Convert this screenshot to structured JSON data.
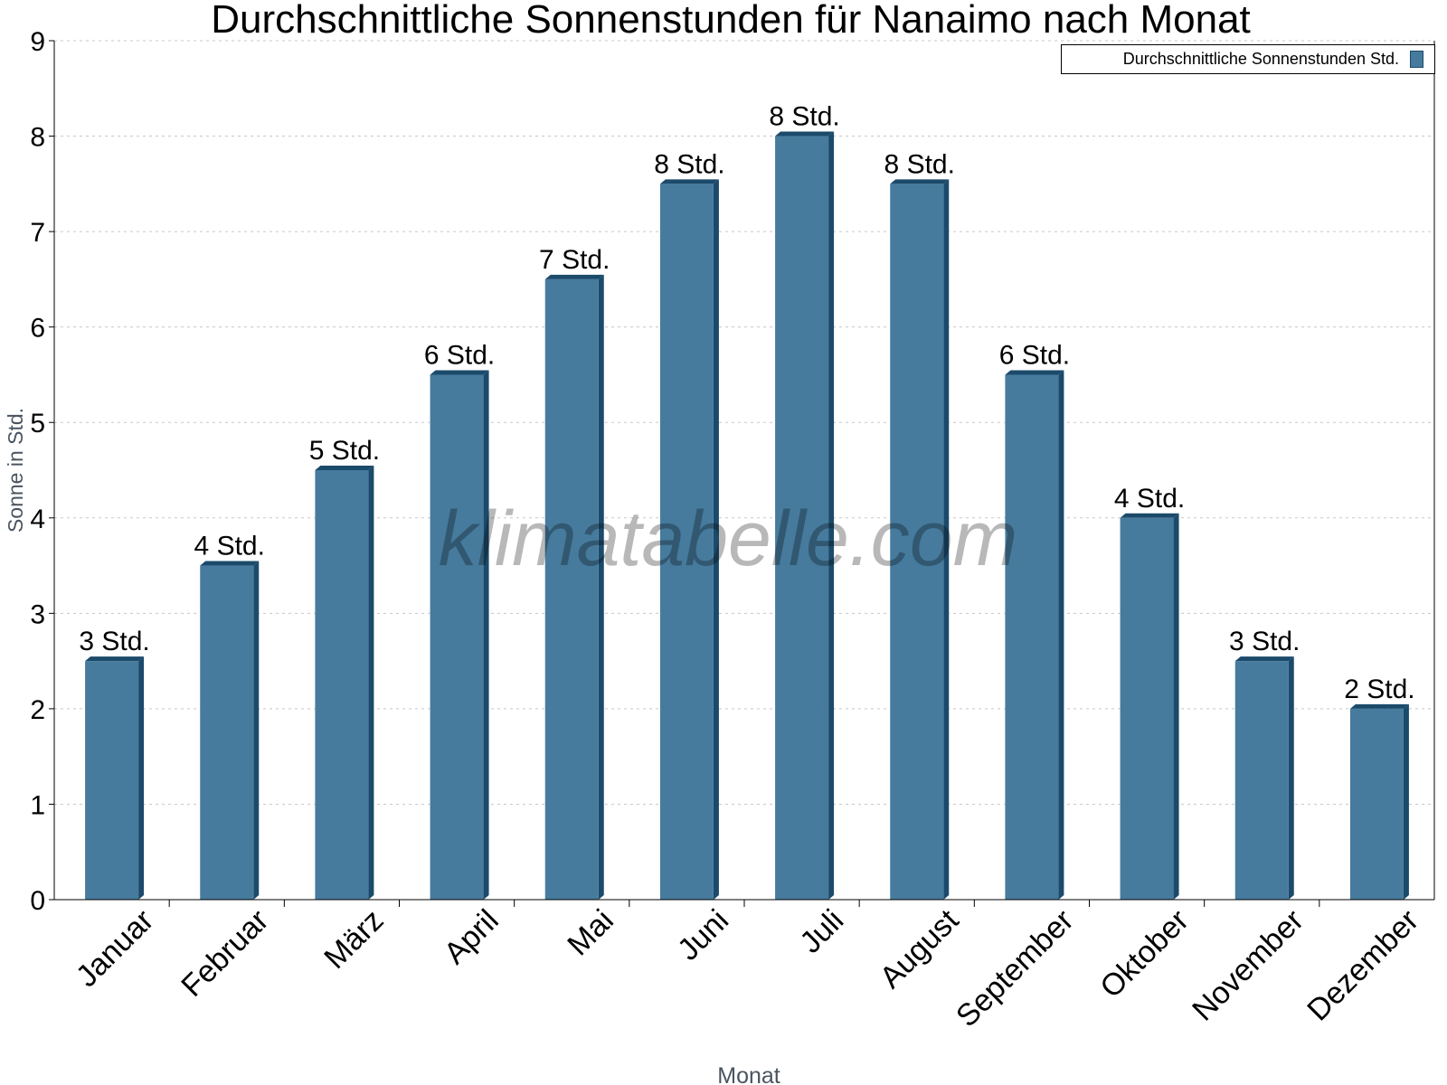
{
  "chart_data": {
    "type": "bar",
    "title": "Durchschnittliche Sonnenstunden für Nanaimo nach Monat",
    "xlabel": "Monat",
    "ylabel": "Sonne in Std.",
    "categories": [
      "Januar",
      "Februar",
      "März",
      "April",
      "Mai",
      "Juni",
      "Juli",
      "August",
      "September",
      "Oktober",
      "November",
      "Dezember"
    ],
    "series": [
      {
        "name": "Durchschnittliche Sonnenstunden Std.",
        "values": [
          2.5,
          3.5,
          4.5,
          5.5,
          6.5,
          7.5,
          8,
          7.5,
          5.5,
          4,
          2.5,
          2
        ],
        "labels": [
          "3 Std.",
          "4 Std.",
          "5 Std.",
          "6 Std.",
          "7 Std.",
          "8 Std.",
          "8 Std.",
          "8 Std.",
          "6 Std.",
          "4 Std.",
          "3 Std.",
          "2 Std."
        ]
      }
    ],
    "ylim": [
      0,
      9
    ],
    "yticks": [
      "0",
      "1",
      "2",
      "3",
      "4",
      "5",
      "6",
      "7",
      "8",
      "9"
    ],
    "grid": true,
    "legend_position": "top-right",
    "colors": {
      "bar": "#467b9d",
      "bar_side": "#1b4a6b"
    },
    "watermark": "klimatabelle.com"
  }
}
